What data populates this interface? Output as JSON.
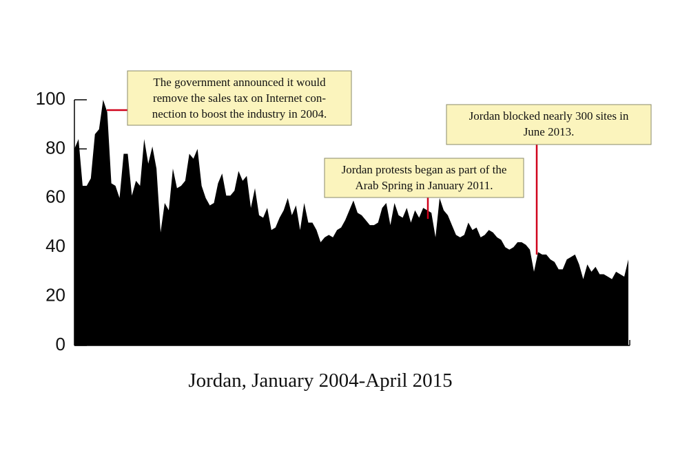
{
  "chart_data": {
    "type": "area",
    "title": "Jordan, January 2004-April 2015",
    "color": "#000000",
    "values": [
      80,
      84,
      65,
      65,
      68,
      86,
      88,
      100,
      95,
      66,
      65,
      60,
      78,
      78,
      61,
      67,
      65,
      84,
      74,
      81,
      72,
      46,
      58,
      55,
      72,
      64,
      65,
      67,
      78,
      76,
      80,
      65,
      60,
      57,
      58,
      66,
      70,
      61,
      61,
      63,
      71,
      67,
      69,
      56,
      64,
      53,
      52,
      56,
      47,
      48,
      52,
      55,
      60,
      53,
      57,
      47,
      58,
      50,
      50,
      47,
      42,
      44,
      45,
      44,
      47,
      48,
      51,
      55,
      59,
      54,
      53,
      51,
      49,
      49,
      50,
      56,
      58,
      49,
      58,
      53,
      52,
      56,
      50,
      55,
      52,
      56,
      55,
      54,
      44,
      60,
      55,
      53,
      49,
      45,
      44,
      45,
      50,
      47,
      48,
      44,
      45,
      47,
      46,
      44,
      43,
      40,
      39,
      40,
      42,
      42,
      41,
      39,
      30,
      38,
      37,
      37,
      35,
      34,
      31,
      31,
      35,
      36,
      37,
      33,
      27,
      33,
      30,
      32,
      29,
      29,
      28,
      27,
      30,
      29,
      28,
      35
    ],
    "ylim": [
      0,
      100
    ],
    "yticks": [
      0,
      20,
      40,
      60,
      80,
      100
    ],
    "annotations": [
      {
        "lines": [
          "The government announced it would",
          "remove the sales tax on Internet con-",
          "nection to boost the industry in 2004."
        ]
      },
      {
        "lines": [
          "Jordan protests began as part of the",
          "Arab Spring in January 2011."
        ]
      },
      {
        "lines": [
          "Jordan blocked nearly 300 sites in",
          "June 2013."
        ]
      }
    ]
  }
}
